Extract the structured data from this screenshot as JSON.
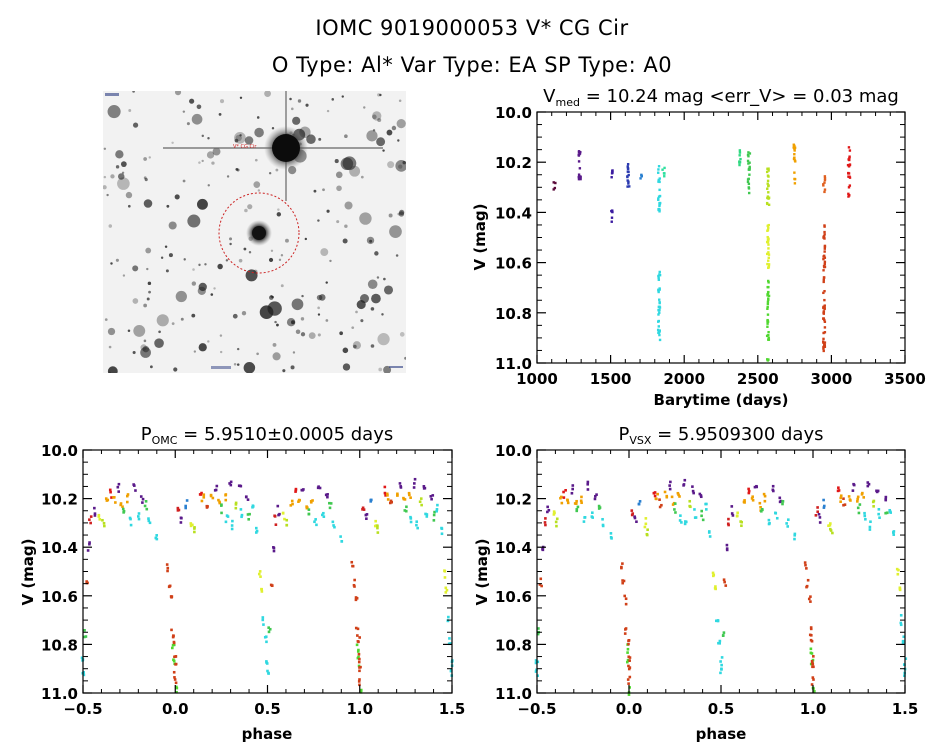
{
  "header": {
    "title_line1": "IOMC 9019000053    V* CG Cir",
    "title_line2": "O Type: Al*   Var Type: EA   SP Type: A0"
  },
  "sky_image": {
    "description": "DSS grayscale star field centred on target with dashed red aperture circle",
    "aperture_color": "#cc2222",
    "corner_labels_legible": false
  },
  "chart_data": [
    {
      "id": "light-curve",
      "type": "scatter",
      "title_main": "V",
      "title_sub": "med",
      "title_rest": " = 10.24 mag <err_V> = 0.03 mag",
      "xlabel": "Barytime (days)",
      "ylabel": "V (mag)",
      "xlim": [
        1000,
        3500
      ],
      "ylim": [
        10.0,
        11.0
      ],
      "y_inverted": true,
      "xticks": [
        1000,
        1500,
        2000,
        2500,
        3000,
        3500
      ],
      "xtick_labels": [
        "1000",
        "1500",
        "2000",
        "2500",
        "3000",
        "3500"
      ],
      "yticks": [
        10.0,
        10.2,
        10.4,
        10.6,
        10.8,
        11.0
      ],
      "ytick_labels": [
        "10.0",
        "10.2",
        "10.4",
        "10.6",
        "10.8",
        "11.0"
      ],
      "grid": false,
      "seasons": [
        {
          "t": 1120,
          "vmin": 10.28,
          "vmax": 10.31,
          "color": "#5a0a3a"
        },
        {
          "t": 1290,
          "vmin": 10.12,
          "vmax": 10.27,
          "color": "#5a1a8a"
        },
        {
          "t": 1510,
          "vmin": 10.22,
          "vmax": 10.26,
          "color": "#3a1aa0"
        },
        {
          "t": 1510,
          "vmin": 10.39,
          "vmax": 10.44,
          "color": "#3a1aa0"
        },
        {
          "t": 1620,
          "vmin": 10.19,
          "vmax": 10.31,
          "color": "#2a3ab0"
        },
        {
          "t": 1710,
          "vmin": 10.25,
          "vmax": 10.27,
          "color": "#2a80d0"
        },
        {
          "t": 1830,
          "vmin": 10.21,
          "vmax": 10.41,
          "color": "#30d8e0"
        },
        {
          "t": 1830,
          "vmin": 10.63,
          "vmax": 10.91,
          "color": "#30d8e0"
        },
        {
          "t": 1860,
          "vmin": 10.22,
          "vmax": 10.27,
          "color": "#30e0a0"
        },
        {
          "t": 2380,
          "vmin": 10.15,
          "vmax": 10.22,
          "color": "#30d880"
        },
        {
          "t": 2440,
          "vmin": 10.16,
          "vmax": 10.33,
          "color": "#40c850"
        },
        {
          "t": 2570,
          "vmin": 10.22,
          "vmax": 10.38,
          "color": "#b8e020"
        },
        {
          "t": 2570,
          "vmin": 10.44,
          "vmax": 10.63,
          "color": "#e0f030"
        },
        {
          "t": 2570,
          "vmin": 10.67,
          "vmax": 10.91,
          "color": "#50d830"
        },
        {
          "t": 2570,
          "vmin": 10.98,
          "vmax": 10.99,
          "color": "#50d830"
        },
        {
          "t": 2750,
          "vmin": 10.13,
          "vmax": 10.29,
          "color": "#f0a000"
        },
        {
          "t": 2950,
          "vmin": 10.25,
          "vmax": 10.32,
          "color": "#e06020"
        },
        {
          "t": 2950,
          "vmin": 10.45,
          "vmax": 10.96,
          "color": "#d04018"
        },
        {
          "t": 3120,
          "vmin": 10.14,
          "vmax": 10.34,
          "color": "#e01818"
        }
      ]
    },
    {
      "id": "phase-omc",
      "type": "scatter",
      "title_main": "P",
      "title_sub": "OMC",
      "title_rest": " = 5.9510±0.0005 days",
      "period_days": 5.951,
      "period_err_days": 0.0005,
      "xlabel": "phase",
      "ylabel": "V (mag)",
      "xlim": [
        -0.5,
        1.5
      ],
      "ylim": [
        10.0,
        11.0
      ],
      "y_inverted": true,
      "xticks": [
        -0.5,
        0.0,
        0.5,
        1.0,
        1.5
      ],
      "xtick_labels": [
        "−0.5",
        "0.0",
        "0.5",
        "1.0",
        "1.5"
      ],
      "yticks": [
        10.0,
        10.2,
        10.4,
        10.6,
        10.8,
        11.0
      ],
      "ytick_labels": [
        "10.0",
        "10.2",
        "10.4",
        "10.6",
        "10.8",
        "11.0"
      ],
      "grid": false,
      "out_of_eclipse_mag": [
        10.13,
        10.35
      ],
      "primary_eclipse": {
        "phase": 0.0,
        "depth_mag": 11.0
      },
      "secondary_eclipse": {
        "phase": 0.5,
        "depth_mag": 10.91
      }
    },
    {
      "id": "phase-vsx",
      "type": "scatter",
      "title_main": "P",
      "title_sub": "VSX",
      "title_rest": " = 5.9509300 days",
      "period_days": 5.95093,
      "xlabel": "phase",
      "ylabel": "V (mag)",
      "xlim": [
        -0.5,
        1.5
      ],
      "ylim": [
        10.0,
        11.0
      ],
      "y_inverted": true,
      "xticks": [
        -0.5,
        0.0,
        0.5,
        1.0,
        1.5
      ],
      "xtick_labels": [
        "−0.5",
        "0.0",
        "0.5",
        "1.0",
        "1.5"
      ],
      "yticks": [
        10.0,
        10.2,
        10.4,
        10.6,
        10.8,
        11.0
      ],
      "ytick_labels": [
        "10.0",
        "10.2",
        "10.4",
        "10.6",
        "10.8",
        "11.0"
      ],
      "grid": false,
      "out_of_eclipse_mag": [
        10.13,
        10.35
      ],
      "primary_eclipse": {
        "phase": 0.0,
        "depth_mag": 11.0
      },
      "secondary_eclipse": {
        "phase": 0.5,
        "depth_mag": 10.91
      }
    }
  ],
  "phase_points": [
    {
      "p": 0.02,
      "v": 10.25,
      "c": "#d02020"
    },
    {
      "p": 0.035,
      "v": 10.28,
      "c": "#5a1a8a"
    },
    {
      "p": 0.06,
      "v": 10.22,
      "c": "#2a80d0"
    },
    {
      "p": 0.09,
      "v": 10.3,
      "c": "#e0f030"
    },
    {
      "p": 0.1,
      "v": 10.33,
      "c": "#b8e020"
    },
    {
      "p": 0.14,
      "v": 10.17,
      "c": "#e01818"
    },
    {
      "p": 0.15,
      "v": 10.2,
      "c": "#f0a000"
    },
    {
      "p": 0.17,
      "v": 10.22,
      "c": "#d04018"
    },
    {
      "p": 0.2,
      "v": 10.19,
      "c": "#f0a000"
    },
    {
      "p": 0.22,
      "v": 10.15,
      "c": "#5a1a8a"
    },
    {
      "p": 0.24,
      "v": 10.21,
      "c": "#f0a000"
    },
    {
      "p": 0.25,
      "v": 10.24,
      "c": "#40c850"
    },
    {
      "p": 0.27,
      "v": 10.19,
      "c": "#f0a000"
    },
    {
      "p": 0.28,
      "v": 10.28,
      "c": "#30d8e0"
    },
    {
      "p": 0.3,
      "v": 10.14,
      "c": "#5a1a8a"
    },
    {
      "p": 0.31,
      "v": 10.31,
      "c": "#30d8e0"
    },
    {
      "p": 0.33,
      "v": 10.22,
      "c": "#b8e020"
    },
    {
      "p": 0.35,
      "v": 10.16,
      "c": "#5a1a8a"
    },
    {
      "p": 0.36,
      "v": 10.26,
      "c": "#30d8e0"
    },
    {
      "p": 0.39,
      "v": 10.2,
      "c": "#5a1a8a"
    },
    {
      "p": 0.4,
      "v": 10.27,
      "c": "#40c850"
    },
    {
      "p": 0.42,
      "v": 10.24,
      "c": "#30d8e0"
    },
    {
      "p": 0.44,
      "v": 10.34,
      "c": "#30d8e0"
    },
    {
      "p": 0.46,
      "v": 10.51,
      "c": "#e0f030"
    },
    {
      "p": 0.47,
      "v": 10.57,
      "c": "#e0f030"
    },
    {
      "p": 0.48,
      "v": 10.7,
      "c": "#30d8e0"
    },
    {
      "p": 0.49,
      "v": 10.78,
      "c": "#30d8e0"
    },
    {
      "p": 0.5,
      "v": 10.87,
      "c": "#30d8e0"
    },
    {
      "p": 0.5,
      "v": 10.91,
      "c": "#30d8e0"
    },
    {
      "p": 0.51,
      "v": 10.75,
      "c": "#40c850"
    },
    {
      "p": 0.52,
      "v": 10.55,
      "c": "#d04018"
    },
    {
      "p": 0.53,
      "v": 10.4,
      "c": "#5a1a8a"
    },
    {
      "p": 0.54,
      "v": 10.29,
      "c": "#d02020"
    },
    {
      "p": 0.56,
      "v": 10.25,
      "c": "#5a1a8a"
    },
    {
      "p": 0.59,
      "v": 10.27,
      "c": "#e0f030"
    },
    {
      "p": 0.61,
      "v": 10.3,
      "c": "#b8e020"
    },
    {
      "p": 0.63,
      "v": 10.21,
      "c": "#f0a000"
    },
    {
      "p": 0.65,
      "v": 10.18,
      "c": "#e01818"
    },
    {
      "p": 0.67,
      "v": 10.2,
      "c": "#f0a000"
    },
    {
      "p": 0.69,
      "v": 10.16,
      "c": "#5a1a8a"
    },
    {
      "p": 0.71,
      "v": 10.23,
      "c": "#f0a000"
    },
    {
      "p": 0.72,
      "v": 10.25,
      "c": "#40c850"
    },
    {
      "p": 0.74,
      "v": 10.2,
      "c": "#f0a000"
    },
    {
      "p": 0.76,
      "v": 10.29,
      "c": "#30d8e0"
    },
    {
      "p": 0.78,
      "v": 10.15,
      "c": "#5a1a8a"
    },
    {
      "p": 0.8,
      "v": 10.27,
      "c": "#30d8e0"
    },
    {
      "p": 0.82,
      "v": 10.2,
      "c": "#5a1a8a"
    },
    {
      "p": 0.84,
      "v": 10.23,
      "c": "#40c850"
    },
    {
      "p": 0.86,
      "v": 10.3,
      "c": "#30d8e0"
    },
    {
      "p": 0.9,
      "v": 10.36,
      "c": "#30d8e0"
    },
    {
      "p": 0.96,
      "v": 10.48,
      "c": "#d04018"
    },
    {
      "p": 0.97,
      "v": 10.55,
      "c": "#d04018"
    },
    {
      "p": 0.98,
      "v": 10.62,
      "c": "#d04018"
    },
    {
      "p": 0.985,
      "v": 10.75,
      "c": "#d04018"
    },
    {
      "p": 0.99,
      "v": 10.82,
      "c": "#50d830"
    },
    {
      "p": 0.995,
      "v": 10.87,
      "c": "#50d830"
    },
    {
      "p": 1.0,
      "v": 10.9,
      "c": "#d04018"
    },
    {
      "p": 1.0,
      "v": 10.95,
      "c": "#d04018"
    },
    {
      "p": 1.005,
      "v": 10.99,
      "c": "#50d830"
    },
    {
      "p": 0.995,
      "v": 10.78,
      "c": "#d04018"
    },
    {
      "p": 0.0,
      "v": 10.86,
      "c": "#d04018"
    }
  ]
}
